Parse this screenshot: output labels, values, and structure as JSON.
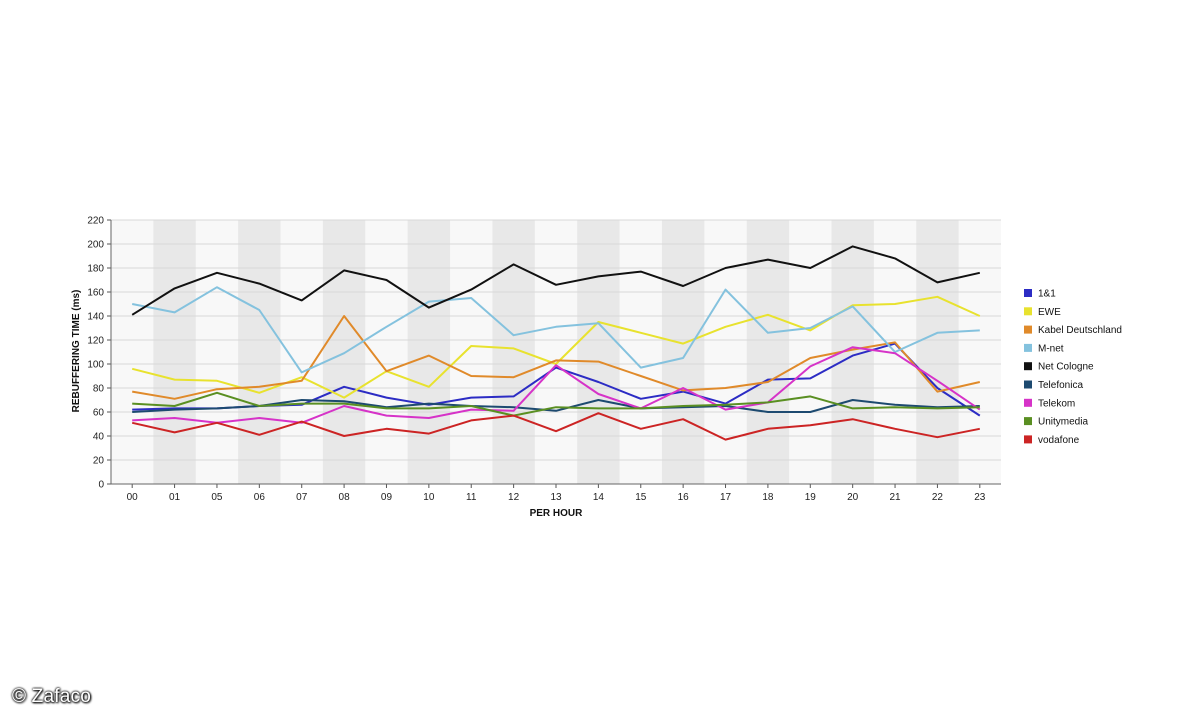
{
  "watermark": "© Zafaco",
  "chart_data": {
    "type": "line",
    "xlabel": "PER HOUR",
    "ylabel": "REBUFFERING TIME (ms)",
    "ylim": [
      0,
      220
    ],
    "yticks": [
      0,
      20,
      40,
      60,
      80,
      100,
      120,
      140,
      160,
      180,
      200,
      220
    ],
    "categories": [
      "00",
      "01",
      "05",
      "06",
      "07",
      "08",
      "09",
      "10",
      "11",
      "12",
      "13",
      "14",
      "15",
      "16",
      "17",
      "18",
      "19",
      "20",
      "21",
      "22",
      "23"
    ],
    "grid": true,
    "legend_position": "right",
    "series": [
      {
        "name": "1&1",
        "color": "#2c2cc4",
        "values": [
          62,
          63,
          63,
          65,
          66,
          81,
          72,
          66,
          72,
          73,
          97,
          85,
          71,
          77,
          67,
          87,
          88,
          107,
          117,
          80,
          57
        ]
      },
      {
        "name": "EWE",
        "color": "#e8e22e",
        "values": [
          96,
          87,
          86,
          76,
          89,
          72,
          94,
          81,
          115,
          113,
          100,
          135,
          126,
          117,
          131,
          141,
          128,
          149,
          150,
          156,
          140
        ]
      },
      {
        "name": "Kabel Deutschland",
        "color": "#e08a2a",
        "values": [
          77,
          71,
          79,
          81,
          86,
          140,
          94,
          107,
          90,
          89,
          103,
          102,
          90,
          78,
          80,
          85,
          105,
          112,
          118,
          77,
          85
        ]
      },
      {
        "name": "M-net",
        "color": "#84c2de",
        "values": [
          150,
          143,
          164,
          145,
          93,
          109,
          131,
          152,
          155,
          124,
          131,
          134,
          97,
          105,
          162,
          126,
          130,
          148,
          110,
          126,
          128
        ]
      },
      {
        "name": "Net Cologne",
        "color": "#111111",
        "values": [
          141,
          163,
          176,
          167,
          153,
          178,
          170,
          147,
          162,
          183,
          166,
          173,
          177,
          165,
          180,
          187,
          180,
          198,
          188,
          168,
          176
        ]
      },
      {
        "name": "Telefonica",
        "color": "#1d4a70",
        "values": [
          60,
          62,
          63,
          65,
          70,
          69,
          64,
          67,
          65,
          64,
          61,
          70,
          63,
          64,
          65,
          60,
          60,
          70,
          66,
          64,
          65
        ]
      },
      {
        "name": "Telekom",
        "color": "#d633c8",
        "values": [
          53,
          55,
          51,
          55,
          51,
          65,
          57,
          55,
          62,
          61,
          99,
          75,
          63,
          80,
          62,
          68,
          98,
          114,
          109,
          86,
          62
        ]
      },
      {
        "name": "Unitymedia",
        "color": "#5a8f22",
        "values": [
          67,
          65,
          76,
          65,
          67,
          67,
          63,
          63,
          65,
          57,
          64,
          63,
          63,
          65,
          66,
          68,
          73,
          63,
          64,
          63,
          64
        ]
      },
      {
        "name": "vodafone",
        "color": "#cc2424",
        "values": [
          51,
          43,
          51,
          41,
          52,
          40,
          46,
          42,
          53,
          57,
          44,
          59,
          46,
          54,
          37,
          46,
          49,
          54,
          46,
          39,
          46
        ]
      }
    ]
  }
}
